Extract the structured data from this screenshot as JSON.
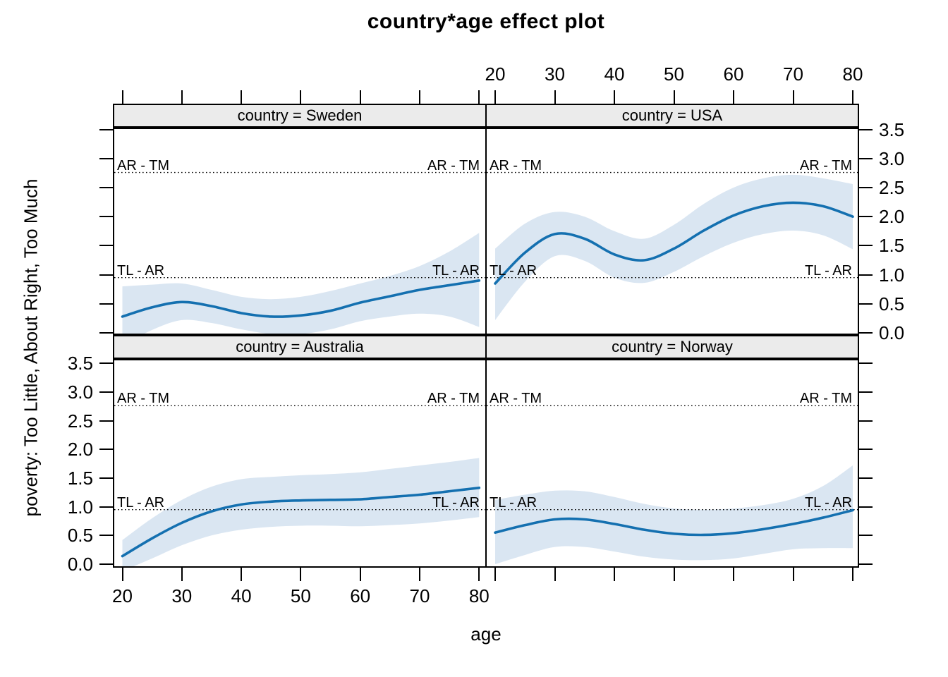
{
  "title": "country*age effect plot",
  "axes": {
    "x_label": "age",
    "y_label": "poverty: Too Little, About Right, Too Much",
    "x_tick_labels": [
      "20",
      "30",
      "40",
      "50",
      "60",
      "70",
      "80"
    ],
    "y_tick_labels": [
      "0.0",
      "0.5",
      "1.0",
      "1.5",
      "2.0",
      "2.5",
      "3.0",
      "3.5"
    ]
  },
  "colors": {
    "line": "#1470b0",
    "band": "#dae6f2",
    "strip_background": "#ebebeb",
    "threshold_line": "#000000"
  },
  "chart_data": {
    "type": "line",
    "layout": "2x2 lattice small multiples (effects package style)",
    "title": "country*age effect plot",
    "xlabel": "age",
    "ylabel": "poverty: Too Little, About Right, Too Much",
    "x_ticks": [
      20,
      30,
      40,
      50,
      60,
      70,
      80
    ],
    "y_ticks": [
      0.0,
      0.5,
      1.0,
      1.5,
      2.0,
      2.5,
      3.0,
      3.5
    ],
    "xlim": [
      18.4,
      81.5
    ],
    "ylim": [
      -0.03,
      3.54
    ],
    "grid": false,
    "x": [
      20,
      25,
      30,
      35,
      40,
      45,
      50,
      55,
      60,
      65,
      70,
      75,
      80
    ],
    "thresholds": [
      {
        "label": "TL - AR",
        "value": 0.95
      },
      {
        "label": "AR - TM",
        "value": 2.76
      }
    ],
    "panels": [
      {
        "title": "country = Sweden",
        "grid_pos": "top-left",
        "fit": [
          0.28,
          0.44,
          0.53,
          0.46,
          0.34,
          0.28,
          0.3,
          0.38,
          0.52,
          0.63,
          0.74,
          0.82,
          0.9
        ],
        "upper": [
          0.8,
          0.83,
          0.85,
          0.74,
          0.62,
          0.58,
          0.62,
          0.72,
          0.85,
          0.98,
          1.15,
          1.4,
          1.72
        ],
        "lower": [
          -0.22,
          0.05,
          0.22,
          0.17,
          0.06,
          -0.02,
          -0.02,
          0.06,
          0.2,
          0.28,
          0.33,
          0.28,
          0.1
        ]
      },
      {
        "title": "country = USA",
        "grid_pos": "top-right",
        "fit": [
          0.85,
          1.38,
          1.7,
          1.62,
          1.35,
          1.25,
          1.45,
          1.76,
          2.02,
          2.18,
          2.24,
          2.18,
          2.0
        ],
        "upper": [
          1.45,
          1.88,
          2.08,
          2.0,
          1.75,
          1.62,
          1.86,
          2.22,
          2.5,
          2.66,
          2.72,
          2.66,
          2.56
        ],
        "lower": [
          0.22,
          0.88,
          1.32,
          1.24,
          0.95,
          0.86,
          1.05,
          1.32,
          1.55,
          1.7,
          1.76,
          1.68,
          1.44
        ]
      },
      {
        "title": "country = Australia",
        "grid_pos": "bottom-left",
        "fit": [
          0.14,
          0.45,
          0.72,
          0.92,
          1.04,
          1.09,
          1.11,
          1.12,
          1.13,
          1.17,
          1.21,
          1.27,
          1.33
        ],
        "upper": [
          0.42,
          0.8,
          1.12,
          1.35,
          1.48,
          1.52,
          1.55,
          1.57,
          1.6,
          1.66,
          1.72,
          1.78,
          1.85
        ],
        "lower": [
          -0.12,
          0.1,
          0.33,
          0.5,
          0.6,
          0.65,
          0.67,
          0.67,
          0.66,
          0.68,
          0.71,
          0.76,
          0.82
        ]
      },
      {
        "title": "country = Norway",
        "grid_pos": "bottom-right",
        "fit": [
          0.55,
          0.68,
          0.78,
          0.78,
          0.7,
          0.6,
          0.53,
          0.51,
          0.54,
          0.61,
          0.7,
          0.81,
          0.94
        ],
        "upper": [
          1.12,
          1.21,
          1.28,
          1.27,
          1.17,
          1.05,
          0.97,
          0.95,
          0.97,
          1.03,
          1.14,
          1.36,
          1.72
        ],
        "lower": [
          0.0,
          0.16,
          0.3,
          0.3,
          0.22,
          0.13,
          0.08,
          0.07,
          0.1,
          0.18,
          0.26,
          0.28,
          0.28
        ]
      }
    ]
  }
}
